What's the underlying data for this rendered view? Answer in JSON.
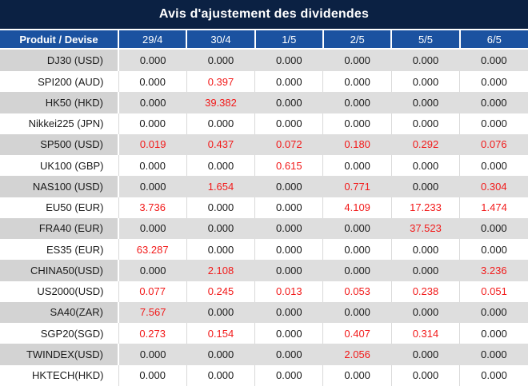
{
  "title": "Avis d'ajustement des dividendes",
  "colors": {
    "title_bg": "#0B2143",
    "header_bg": "#1B52A0",
    "header_text": "#FFFFFF",
    "row_gray": "#DEDEDE",
    "row_gray_label": "#D3D3D3",
    "row_white": "#FFFFFF",
    "value_black": "#1A1A1A",
    "value_red": "#F21A1A",
    "divider": "#D9D9D9"
  },
  "table": {
    "header": {
      "product_col": "Produit / Devise",
      "dates": [
        "29/4",
        "30/4",
        "1/5",
        "2/5",
        "5/5",
        "6/5"
      ]
    },
    "rows": [
      {
        "label": "DJ30 (USD)",
        "cells": [
          {
            "v": "0.000",
            "red": false
          },
          {
            "v": "0.000",
            "red": false
          },
          {
            "v": "0.000",
            "red": false
          },
          {
            "v": "0.000",
            "red": false
          },
          {
            "v": "0.000",
            "red": false
          },
          {
            "v": "0.000",
            "red": false
          }
        ]
      },
      {
        "label": "SPI200 (AUD)",
        "cells": [
          {
            "v": "0.000",
            "red": false
          },
          {
            "v": "0.397",
            "red": true
          },
          {
            "v": "0.000",
            "red": false
          },
          {
            "v": "0.000",
            "red": false
          },
          {
            "v": "0.000",
            "red": false
          },
          {
            "v": "0.000",
            "red": false
          }
        ]
      },
      {
        "label": "HK50 (HKD)",
        "cells": [
          {
            "v": "0.000",
            "red": false
          },
          {
            "v": "39.382",
            "red": true
          },
          {
            "v": "0.000",
            "red": false
          },
          {
            "v": "0.000",
            "red": false
          },
          {
            "v": "0.000",
            "red": false
          },
          {
            "v": "0.000",
            "red": false
          }
        ]
      },
      {
        "label": "Nikkei225 (JPN)",
        "cells": [
          {
            "v": "0.000",
            "red": false
          },
          {
            "v": "0.000",
            "red": false
          },
          {
            "v": "0.000",
            "red": false
          },
          {
            "v": "0.000",
            "red": false
          },
          {
            "v": "0.000",
            "red": false
          },
          {
            "v": "0.000",
            "red": false
          }
        ]
      },
      {
        "label": "SP500 (USD)",
        "cells": [
          {
            "v": "0.019",
            "red": true
          },
          {
            "v": "0.437",
            "red": true
          },
          {
            "v": "0.072",
            "red": true
          },
          {
            "v": "0.180",
            "red": true
          },
          {
            "v": "0.292",
            "red": true
          },
          {
            "v": "0.076",
            "red": true
          }
        ]
      },
      {
        "label": "UK100 (GBP)",
        "cells": [
          {
            "v": "0.000",
            "red": false
          },
          {
            "v": "0.000",
            "red": false
          },
          {
            "v": "0.615",
            "red": true
          },
          {
            "v": "0.000",
            "red": false
          },
          {
            "v": "0.000",
            "red": false
          },
          {
            "v": "0.000",
            "red": false
          }
        ]
      },
      {
        "label": "NAS100 (USD)",
        "cells": [
          {
            "v": "0.000",
            "red": false
          },
          {
            "v": "1.654",
            "red": true
          },
          {
            "v": "0.000",
            "red": false
          },
          {
            "v": "0.771",
            "red": true
          },
          {
            "v": "0.000",
            "red": false
          },
          {
            "v": "0.304",
            "red": true
          }
        ]
      },
      {
        "label": "EU50 (EUR)",
        "cells": [
          {
            "v": "3.736",
            "red": true
          },
          {
            "v": "0.000",
            "red": false
          },
          {
            "v": "0.000",
            "red": false
          },
          {
            "v": "4.109",
            "red": true
          },
          {
            "v": "17.233",
            "red": true
          },
          {
            "v": "1.474",
            "red": true
          }
        ]
      },
      {
        "label": "FRA40 (EUR)",
        "cells": [
          {
            "v": "0.000",
            "red": false
          },
          {
            "v": "0.000",
            "red": false
          },
          {
            "v": "0.000",
            "red": false
          },
          {
            "v": "0.000",
            "red": false
          },
          {
            "v": "37.523",
            "red": true
          },
          {
            "v": "0.000",
            "red": false
          }
        ]
      },
      {
        "label": "ES35 (EUR)",
        "cells": [
          {
            "v": "63.287",
            "red": true
          },
          {
            "v": "0.000",
            "red": false
          },
          {
            "v": "0.000",
            "red": false
          },
          {
            "v": "0.000",
            "red": false
          },
          {
            "v": "0.000",
            "red": false
          },
          {
            "v": "0.000",
            "red": false
          }
        ]
      },
      {
        "label": "CHINA50(USD)",
        "cells": [
          {
            "v": "0.000",
            "red": false
          },
          {
            "v": "2.108",
            "red": true
          },
          {
            "v": "0.000",
            "red": false
          },
          {
            "v": "0.000",
            "red": false
          },
          {
            "v": "0.000",
            "red": false
          },
          {
            "v": "3.236",
            "red": true
          }
        ]
      },
      {
        "label": "US2000(USD)",
        "cells": [
          {
            "v": "0.077",
            "red": true
          },
          {
            "v": "0.245",
            "red": true
          },
          {
            "v": "0.013",
            "red": true
          },
          {
            "v": "0.053",
            "red": true
          },
          {
            "v": "0.238",
            "red": true
          },
          {
            "v": "0.051",
            "red": true
          }
        ]
      },
      {
        "label": "SA40(ZAR)",
        "cells": [
          {
            "v": "7.567",
            "red": true
          },
          {
            "v": "0.000",
            "red": false
          },
          {
            "v": "0.000",
            "red": false
          },
          {
            "v": "0.000",
            "red": false
          },
          {
            "v": "0.000",
            "red": false
          },
          {
            "v": "0.000",
            "red": false
          }
        ]
      },
      {
        "label": "SGP20(SGD)",
        "cells": [
          {
            "v": "0.273",
            "red": true
          },
          {
            "v": "0.154",
            "red": true
          },
          {
            "v": "0.000",
            "red": false
          },
          {
            "v": "0.407",
            "red": true
          },
          {
            "v": "0.314",
            "red": true
          },
          {
            "v": "0.000",
            "red": false
          }
        ]
      },
      {
        "label": "TWINDEX(USD)",
        "cells": [
          {
            "v": "0.000",
            "red": false
          },
          {
            "v": "0.000",
            "red": false
          },
          {
            "v": "0.000",
            "red": false
          },
          {
            "v": "2.056",
            "red": true
          },
          {
            "v": "0.000",
            "red": false
          },
          {
            "v": "0.000",
            "red": false
          }
        ]
      },
      {
        "label": "HKTECH(HKD)",
        "cells": [
          {
            "v": "0.000",
            "red": false
          },
          {
            "v": "0.000",
            "red": false
          },
          {
            "v": "0.000",
            "red": false
          },
          {
            "v": "0.000",
            "red": false
          },
          {
            "v": "0.000",
            "red": false
          },
          {
            "v": "0.000",
            "red": false
          }
        ]
      }
    ]
  }
}
